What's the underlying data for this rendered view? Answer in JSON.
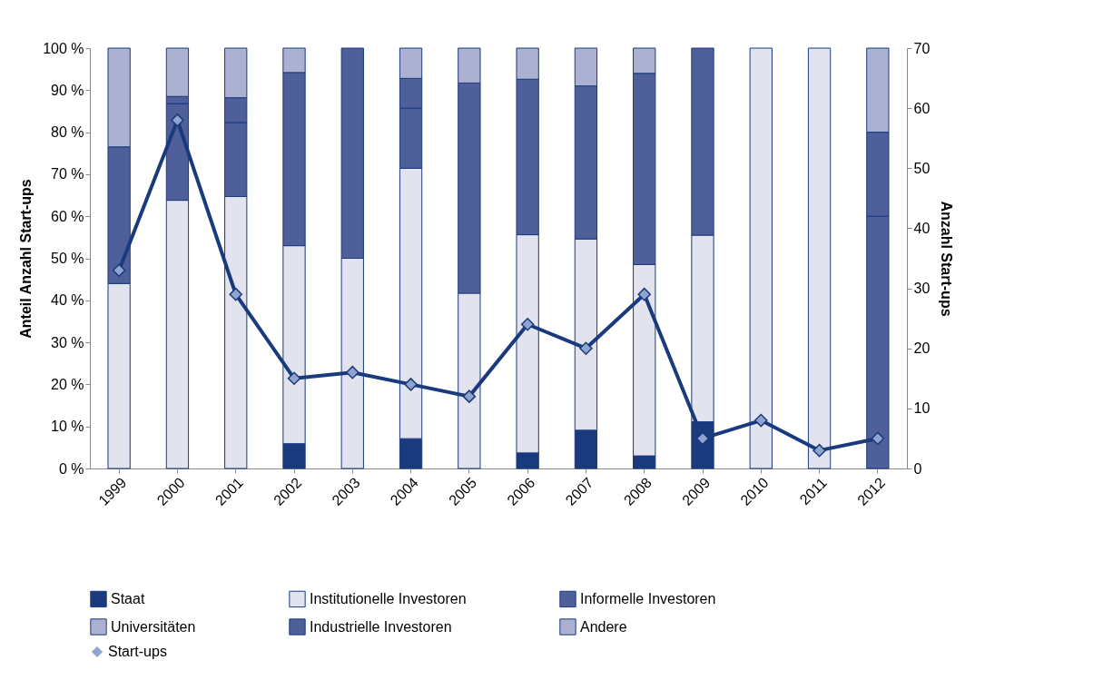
{
  "chart_data": {
    "type": "bar",
    "stacked": true,
    "ylabel": "Anteil Anzahl Start-ups",
    "y2label": "Anzahl Start-ups",
    "legend": "bottom",
    "grid": false,
    "marker": "diamond",
    "categories": [
      "1999",
      "2000",
      "2001",
      "2002",
      "2003",
      "2004",
      "2005",
      "2006",
      "2007",
      "2008",
      "2009",
      "2010",
      "2011",
      "2012"
    ],
    "ylim": [
      0,
      100
    ],
    "yticks": [
      {
        "value": 0,
        "label": "0 %"
      },
      {
        "value": 10,
        "label": "10 %"
      },
      {
        "value": 20,
        "label": "20 %"
      },
      {
        "value": 30,
        "label": "30 %"
      },
      {
        "value": 40,
        "label": "40 %"
      },
      {
        "value": 50,
        "label": "50 %"
      },
      {
        "value": 60,
        "label": "60 %"
      },
      {
        "value": 70,
        "label": "70 %"
      },
      {
        "value": 80,
        "label": "80 %"
      },
      {
        "value": 90,
        "label": "90 %"
      },
      {
        "value": 100,
        "label": "100 %"
      }
    ],
    "y2lim": [
      0,
      70
    ],
    "y2ticks": [
      0,
      10,
      20,
      30,
      40,
      50,
      60,
      70
    ],
    "series": [
      {
        "name": "Staat",
        "color": "#1a3a7e",
        "values": [
          0,
          0,
          0,
          5.9,
          0,
          7.1,
          0,
          3.7,
          9.1,
          3,
          11.1,
          0,
          0,
          0
        ]
      },
      {
        "name": "Institutionelle Investoren",
        "color": "#e2e3ef",
        "values": [
          44,
          63.8,
          64.7,
          47.1,
          50,
          64.3,
          41.7,
          51.9,
          45.5,
          45.5,
          44.4,
          100,
          100,
          0
        ]
      },
      {
        "name": "Informelle Investoren",
        "color": "#4f5f99",
        "values": [
          32.5,
          23,
          17.6,
          41.2,
          50,
          14.3,
          50,
          37,
          36.4,
          45.5,
          44.5,
          0,
          0,
          60
        ]
      },
      {
        "name": "Universitäten",
        "color": "#adb1d1",
        "values": [
          0,
          0,
          0,
          0,
          0,
          0,
          0,
          0,
          0,
          0,
          0,
          0,
          0,
          0
        ]
      },
      {
        "name": "Industrielle Investoren",
        "color": "#4f5f99",
        "values": [
          0,
          1.7,
          5.9,
          0,
          0,
          7.1,
          0,
          0,
          0,
          0,
          0,
          0,
          0,
          20
        ]
      },
      {
        "name": "Andere",
        "color": "#adb1d1",
        "values": [
          23.5,
          11.5,
          11.8,
          5.8,
          0,
          7.2,
          8.3,
          7.4,
          9,
          6,
          0,
          0,
          0,
          20
        ]
      },
      {
        "name": "Start-ups",
        "type": "line",
        "axis": "y2",
        "color": "#1a3a7e",
        "values": [
          33,
          58,
          29,
          15,
          16,
          14,
          12,
          24,
          20,
          29,
          5,
          8,
          3,
          5
        ]
      }
    ]
  }
}
